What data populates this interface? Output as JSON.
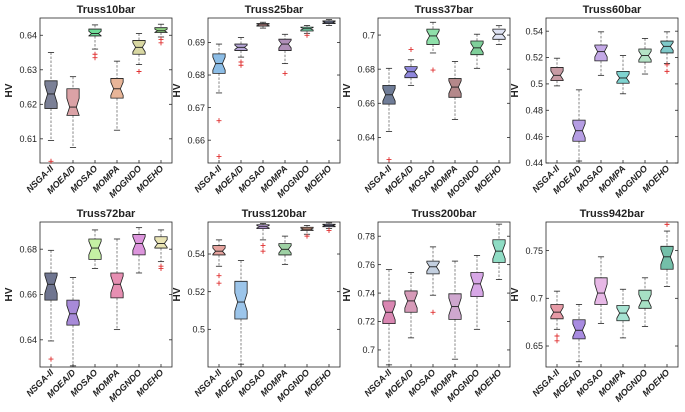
{
  "figure": {
    "ylabel": "HV"
  },
  "chart_data": [
    {
      "type": "boxplot",
      "title": "Truss10bar",
      "categories": [
        "NSGA-II",
        "MOEA/D",
        "MOSAO",
        "MOMPA",
        "MOGNDO",
        "MOEHO"
      ],
      "ylabel": "HV",
      "ylim": [
        0.603,
        0.645
      ],
      "yticks": [
        0.61,
        0.62,
        0.63,
        0.64
      ],
      "tick_labels": [
        "0.61",
        "0.62",
        "0.63",
        "0.64"
      ],
      "colors": [
        "#7b8096",
        "#dba2a6",
        "#6fdc98",
        "#e8b598",
        "#d8d7a2",
        "#90d083"
      ],
      "boxes": [
        {
          "min": 0.6095,
          "q1": 0.6188,
          "median": 0.623,
          "q3": 0.6268,
          "max": 0.635,
          "outliers": [
            0.6035
          ]
        },
        {
          "min": 0.6075,
          "q1": 0.6168,
          "median": 0.6192,
          "q3": 0.6245,
          "max": 0.628,
          "outliers": []
        },
        {
          "min": 0.636,
          "q1": 0.6398,
          "median": 0.6405,
          "q3": 0.6418,
          "max": 0.643,
          "outliers": [
            0.6345,
            0.6335
          ]
        },
        {
          "min": 0.6125,
          "q1": 0.6218,
          "median": 0.6245,
          "q3": 0.6275,
          "max": 0.6325,
          "outliers": []
        },
        {
          "min": 0.6315,
          "q1": 0.6345,
          "median": 0.6365,
          "q3": 0.6385,
          "max": 0.6405,
          "outliers": [
            0.6295
          ]
        },
        {
          "min": 0.6395,
          "q1": 0.6408,
          "median": 0.6413,
          "q3": 0.6422,
          "max": 0.6432,
          "outliers": [
            0.6388,
            0.6378
          ]
        }
      ]
    },
    {
      "type": "boxplot",
      "title": "Truss25bar",
      "categories": [
        "NSGA-II",
        "MOEA/D",
        "MOSAO",
        "MOMPA",
        "MOGNDO",
        "MOEHO"
      ],
      "ylabel": "HV",
      "ylim": [
        0.653,
        0.6975
      ],
      "yticks": [
        0.66,
        0.67,
        0.68,
        0.69
      ],
      "tick_labels": [
        "0.66",
        "0.67",
        "0.68",
        "0.69"
      ],
      "colors": [
        "#8cbde6",
        "#b6a6d6",
        "#f0a9a9",
        "#b08fb8",
        "#79d9ad",
        "#aab6e9"
      ],
      "boxes": [
        {
          "min": 0.6745,
          "q1": 0.6805,
          "median": 0.6835,
          "q3": 0.6865,
          "max": 0.6895,
          "outliers": [
            0.666,
            0.655
          ]
        },
        {
          "min": 0.6855,
          "q1": 0.6875,
          "median": 0.6885,
          "q3": 0.6895,
          "max": 0.6915,
          "outliers": [
            0.684,
            0.683
          ]
        },
        {
          "min": 0.6944,
          "q1": 0.695,
          "median": 0.6954,
          "q3": 0.6958,
          "max": 0.6962,
          "outliers": []
        },
        {
          "min": 0.6835,
          "q1": 0.6875,
          "median": 0.6895,
          "q3": 0.691,
          "max": 0.6925,
          "outliers": [
            0.6805
          ]
        },
        {
          "min": 0.6928,
          "q1": 0.6935,
          "median": 0.6942,
          "q3": 0.6947,
          "max": 0.6952,
          "outliers": [
            0.6922
          ]
        },
        {
          "min": 0.6952,
          "q1": 0.6958,
          "median": 0.6962,
          "q3": 0.6966,
          "max": 0.697,
          "outliers": []
        }
      ]
    },
    {
      "type": "boxplot",
      "title": "Truss37bar",
      "categories": [
        "NSGA-II",
        "MOEA/D",
        "MOSAO",
        "MOMPA",
        "MOGNDO",
        "MOEHO"
      ],
      "ylabel": "HV",
      "ylim": [
        0.625,
        0.71
      ],
      "yticks": [
        0.64,
        0.66,
        0.68,
        0.7
      ],
      "tick_labels": [
        "0.64",
        "0.66",
        "0.68",
        "0.7"
      ],
      "colors": [
        "#6f7c97",
        "#8f87dc",
        "#8fe0aa",
        "#b4888a",
        "#7fcf9a",
        "#dfe3f4"
      ],
      "boxes": [
        {
          "min": 0.6435,
          "q1": 0.6595,
          "median": 0.665,
          "q3": 0.6705,
          "max": 0.6805,
          "outliers": [
            0.627
          ]
        },
        {
          "min": 0.6705,
          "q1": 0.675,
          "median": 0.6785,
          "q3": 0.6815,
          "max": 0.6855,
          "outliers": [
            0.6915
          ]
        },
        {
          "min": 0.6895,
          "q1": 0.6945,
          "median": 0.6995,
          "q3": 0.7035,
          "max": 0.7075,
          "outliers": [
            0.6795
          ]
        },
        {
          "min": 0.6505,
          "q1": 0.6635,
          "median": 0.6695,
          "q3": 0.6745,
          "max": 0.6845,
          "outliers": []
        },
        {
          "min": 0.6805,
          "q1": 0.6885,
          "median": 0.6925,
          "q3": 0.6965,
          "max": 0.7005,
          "outliers": []
        },
        {
          "min": 0.6945,
          "q1": 0.6975,
          "median": 0.7005,
          "q3": 0.7035,
          "max": 0.7055,
          "outliers": []
        }
      ]
    },
    {
      "type": "boxplot",
      "title": "Truss60bar",
      "categories": [
        "NSGA-II",
        "MOEA/D",
        "MOSAO",
        "MOMPA",
        "MOGNDO",
        "MOEHO"
      ],
      "ylabel": "HV",
      "ylim": [
        0.44,
        0.55
      ],
      "yticks": [
        0.44,
        0.46,
        0.48,
        0.5,
        0.52,
        0.54
      ],
      "tick_labels": [
        "0.44",
        "0.46",
        "0.48",
        "0.5",
        "0.52",
        "0.54"
      ],
      "colors": [
        "#c89ba4",
        "#b59de3",
        "#c3a8e6",
        "#7fd3d0",
        "#b5e3c6",
        "#7fc9c9"
      ],
      "boxes": [
        {
          "min": 0.4985,
          "q1": 0.5025,
          "median": 0.5065,
          "q3": 0.5125,
          "max": 0.5195,
          "outliers": []
        },
        {
          "min": 0.4415,
          "q1": 0.4565,
          "median": 0.4645,
          "q3": 0.4725,
          "max": 0.4955,
          "outliers": []
        },
        {
          "min": 0.5065,
          "q1": 0.5175,
          "median": 0.5245,
          "q3": 0.5295,
          "max": 0.5395,
          "outliers": []
        },
        {
          "min": 0.4925,
          "q1": 0.5005,
          "median": 0.5045,
          "q3": 0.5095,
          "max": 0.5215,
          "outliers": []
        },
        {
          "min": 0.5075,
          "q1": 0.5165,
          "median": 0.5215,
          "q3": 0.5265,
          "max": 0.5345,
          "outliers": []
        },
        {
          "min": 0.5155,
          "q1": 0.5235,
          "median": 0.5285,
          "q3": 0.5325,
          "max": 0.5395,
          "outliers": [
            0.5145,
            0.5095
          ]
        }
      ]
    },
    {
      "type": "boxplot",
      "title": "Truss72bar",
      "categories": [
        "NSGA-II",
        "MOEA/D",
        "MOSAO",
        "MOMPA",
        "MOGNDO",
        "MOEHO"
      ],
      "ylabel": "HV",
      "ylim": [
        0.628,
        0.692
      ],
      "yticks": [
        0.64,
        0.66,
        0.68
      ],
      "tick_labels": [
        "0.64",
        "0.66",
        "0.68"
      ],
      "colors": [
        "#6f7590",
        "#a78ad8",
        "#c4f0a4",
        "#e68fb2",
        "#dc95dc",
        "#e9e4b5"
      ],
      "boxes": [
        {
          "min": 0.6395,
          "q1": 0.6575,
          "median": 0.6645,
          "q3": 0.6695,
          "max": 0.6795,
          "outliers": [
            0.6315
          ]
        },
        {
          "min": 0.6285,
          "q1": 0.6465,
          "median": 0.6515,
          "q3": 0.6575,
          "max": 0.6675,
          "outliers": []
        },
        {
          "min": 0.6715,
          "q1": 0.6755,
          "median": 0.6805,
          "q3": 0.6845,
          "max": 0.6885,
          "outliers": []
        },
        {
          "min": 0.6445,
          "q1": 0.6585,
          "median": 0.6645,
          "q3": 0.6695,
          "max": 0.6845,
          "outliers": []
        },
        {
          "min": 0.6695,
          "q1": 0.6775,
          "median": 0.6825,
          "q3": 0.6865,
          "max": 0.6895,
          "outliers": []
        },
        {
          "min": 0.6745,
          "q1": 0.6805,
          "median": 0.6825,
          "q3": 0.6855,
          "max": 0.6885,
          "outliers": [
            0.6725,
            0.6715
          ]
        }
      ]
    },
    {
      "type": "boxplot",
      "title": "Truss120bar",
      "categories": [
        "NSGA-II",
        "MOEA/D",
        "MOSAO",
        "MOMPA",
        "MOGNDO",
        "MOEHO"
      ],
      "ylabel": "HV",
      "ylim": [
        0.48,
        0.557
      ],
      "yticks": [
        0.5,
        0.52,
        0.54
      ],
      "tick_labels": [
        "0.5",
        "0.52",
        "0.54"
      ],
      "colors": [
        "#e6a39e",
        "#9cc5ea",
        "#c6a6e6",
        "#9ed1a4",
        "#d39a85",
        "#b8b6ec"
      ],
      "boxes": [
        {
          "min": 0.5335,
          "q1": 0.5395,
          "median": 0.5415,
          "q3": 0.5445,
          "max": 0.5475,
          "outliers": [
            0.5285,
            0.5245
          ]
        },
        {
          "min": 0.4815,
          "q1": 0.5055,
          "median": 0.5145,
          "q3": 0.5255,
          "max": 0.5365,
          "outliers": []
        },
        {
          "min": 0.5475,
          "q1": 0.5535,
          "median": 0.5545,
          "q3": 0.5555,
          "max": 0.5562,
          "outliers": [
            0.5415,
            0.5445
          ]
        },
        {
          "min": 0.5345,
          "q1": 0.5395,
          "median": 0.5425,
          "q3": 0.5455,
          "max": 0.5495,
          "outliers": []
        },
        {
          "min": 0.5505,
          "q1": 0.5525,
          "median": 0.5532,
          "q3": 0.5542,
          "max": 0.5552,
          "outliers": [
            0.5495
          ]
        },
        {
          "min": 0.5535,
          "q1": 0.5545,
          "median": 0.5552,
          "q3": 0.5558,
          "max": 0.5565,
          "outliers": [
            0.5525
          ]
        }
      ]
    },
    {
      "type": "boxplot",
      "title": "Truss200bar",
      "categories": [
        "NSGA-II",
        "MOEA/D",
        "MOSAO",
        "MOMPA",
        "MOGNDO",
        "MOEHO"
      ],
      "ylabel": "HV",
      "ylim": [
        0.688,
        0.79
      ],
      "yticks": [
        0.7,
        0.72,
        0.74,
        0.76,
        0.78
      ],
      "tick_labels": [
        "0.7",
        "0.72",
        "0.74",
        "0.76",
        "0.78"
      ],
      "colors": [
        "#d987b2",
        "#d69ab8",
        "#c3cfdf",
        "#cfa7cf",
        "#d7a7e6",
        "#8fdcc4"
      ],
      "boxes": [
        {
          "min": 0.6895,
          "q1": 0.7185,
          "median": 0.7265,
          "q3": 0.7345,
          "max": 0.7565,
          "outliers": []
        },
        {
          "min": 0.7085,
          "q1": 0.7265,
          "median": 0.7345,
          "q3": 0.7415,
          "max": 0.7545,
          "outliers": []
        },
        {
          "min": 0.7385,
          "q1": 0.7535,
          "median": 0.7585,
          "q3": 0.7625,
          "max": 0.7725,
          "outliers": [
            0.7265
          ]
        },
        {
          "min": 0.6935,
          "q1": 0.7215,
          "median": 0.7305,
          "q3": 0.7395,
          "max": 0.7625,
          "outliers": []
        },
        {
          "min": 0.7145,
          "q1": 0.7375,
          "median": 0.7465,
          "q3": 0.7545,
          "max": 0.7665,
          "outliers": []
        },
        {
          "min": 0.7495,
          "q1": 0.7615,
          "median": 0.7695,
          "q3": 0.7775,
          "max": 0.7885,
          "outliers": []
        }
      ]
    },
    {
      "type": "boxplot",
      "title": "Truss942bar",
      "categories": [
        "NSGA-II",
        "MOEA/D",
        "MOSAO",
        "MOMPA",
        "MOGNDO",
        "MOEHO"
      ],
      "ylabel": "HV",
      "ylim": [
        0.628,
        0.78
      ],
      "yticks": [
        0.65,
        0.7,
        0.75
      ],
      "tick_labels": [
        "0.65",
        "0.7",
        "0.75"
      ],
      "colors": [
        "#e79aa6",
        "#a88be0",
        "#e7b8e6",
        "#a6e3d2",
        "#a6e0c4",
        "#74bfa9"
      ],
      "boxes": [
        {
          "min": 0.6675,
          "q1": 0.6785,
          "median": 0.6855,
          "q3": 0.6935,
          "max": 0.7075,
          "outliers": [
            0.6605,
            0.6555
          ]
        },
        {
          "min": 0.6335,
          "q1": 0.6575,
          "median": 0.6665,
          "q3": 0.6775,
          "max": 0.6935,
          "outliers": []
        },
        {
          "min": 0.6735,
          "q1": 0.6935,
          "median": 0.7055,
          "q3": 0.7215,
          "max": 0.7435,
          "outliers": []
        },
        {
          "min": 0.6585,
          "q1": 0.6765,
          "median": 0.6845,
          "q3": 0.6925,
          "max": 0.7095,
          "outliers": []
        },
        {
          "min": 0.6705,
          "q1": 0.6895,
          "median": 0.6975,
          "q3": 0.7085,
          "max": 0.7215,
          "outliers": []
        },
        {
          "min": 0.7125,
          "q1": 0.7305,
          "median": 0.7435,
          "q3": 0.7545,
          "max": 0.7705,
          "outliers": [
            0.7775
          ]
        }
      ]
    }
  ]
}
